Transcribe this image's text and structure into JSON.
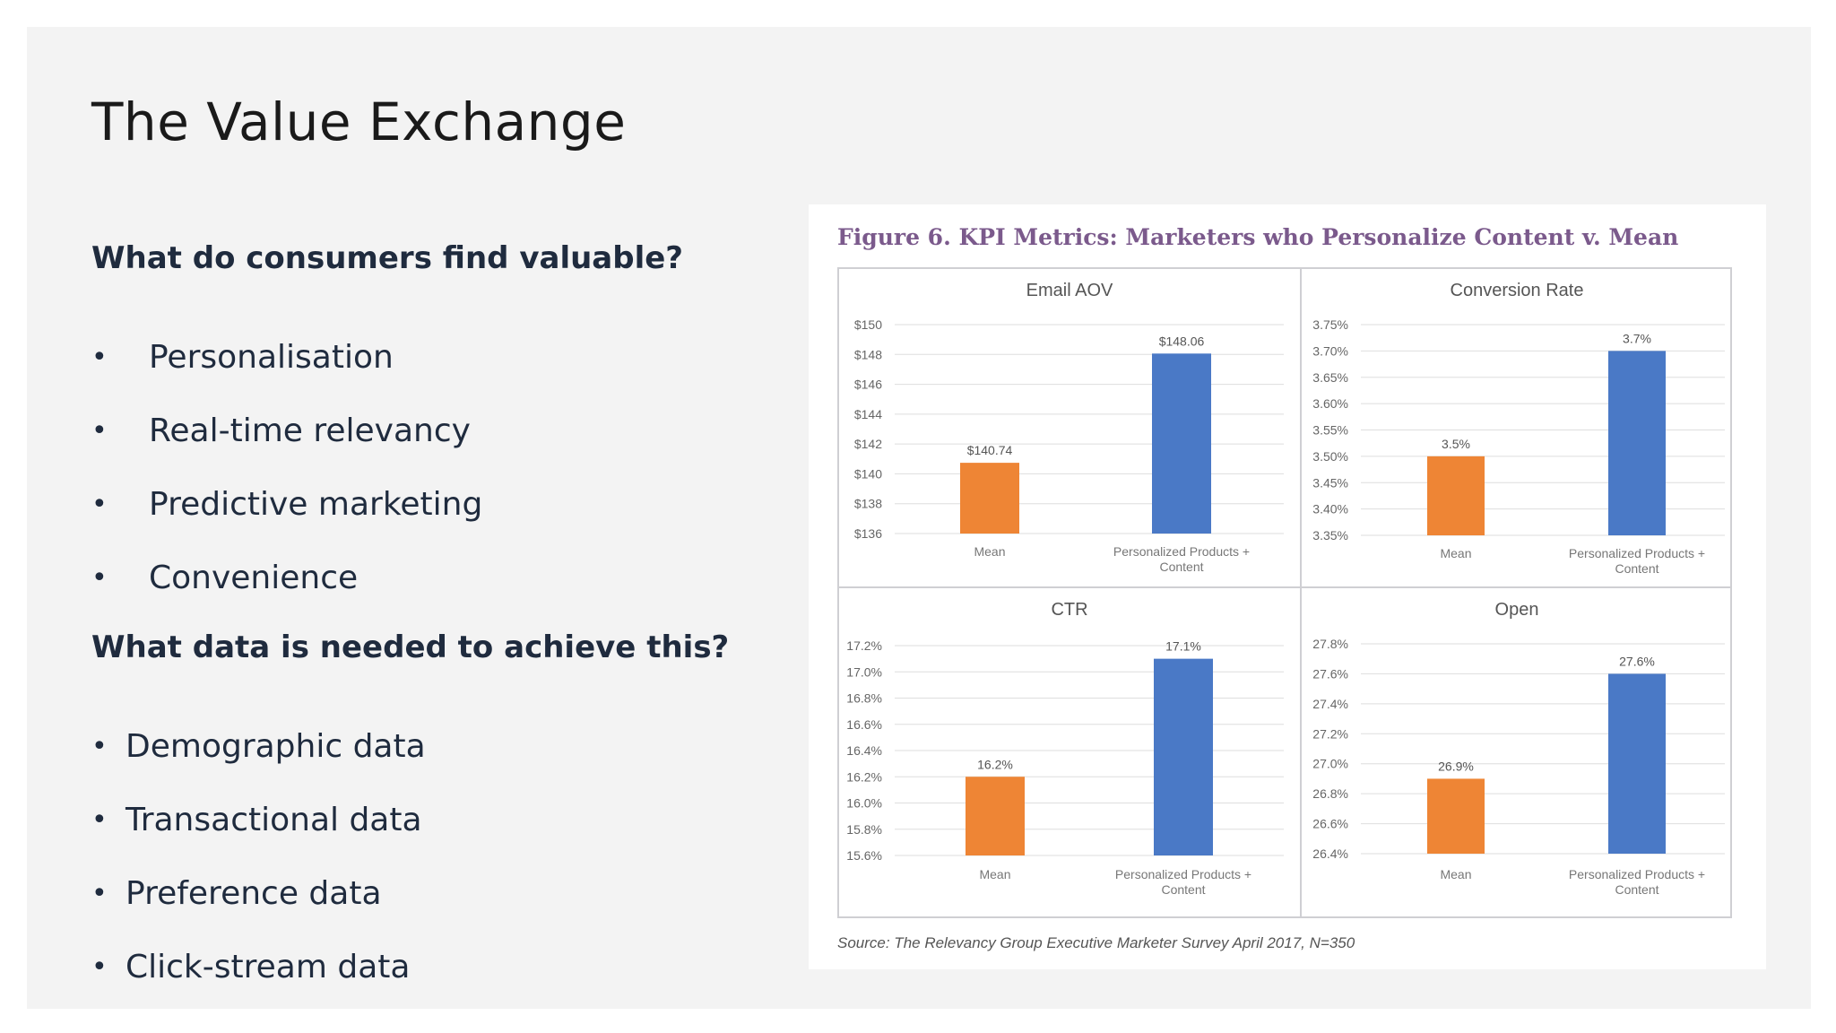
{
  "slide": {
    "title": "The Value Exchange",
    "section1": {
      "heading": "What do consumers find valuable?",
      "bullet": "•",
      "items": [
        "Personalisation",
        "Real-time relevancy",
        "Predictive marketing",
        "Convenience"
      ]
    },
    "section2": {
      "heading": "What data is needed to achieve this?",
      "bullet": "•",
      "items": [
        "Demographic data",
        "Transactional data",
        "Preference data",
        "Click-stream data"
      ]
    }
  },
  "figure": {
    "title": "Figure 6. KPI Metrics: Marketers who Personalize Content v. Mean",
    "source": "Source: The Relevancy Group Executive Marketer Survey April 2017, N=350"
  },
  "colors": {
    "mean": "#ee8535",
    "personalized": "#4a79c6",
    "grid": "#dedede",
    "text": "#555555"
  },
  "chart_data": [
    {
      "type": "bar",
      "title": "Email AOV",
      "categories": [
        "Mean",
        "Personalized Products + Content"
      ],
      "values": [
        140.74,
        148.06
      ],
      "value_labels": [
        "$140.74",
        "$148.06"
      ],
      "ylim": [
        136,
        150
      ],
      "yticks": [
        136,
        138,
        140,
        142,
        144,
        146,
        148,
        150
      ],
      "ytick_labels": [
        "$136",
        "$138",
        "$140",
        "$142",
        "$144",
        "$146",
        "$148",
        "$150"
      ],
      "grid": true
    },
    {
      "type": "bar",
      "title": "Conversion Rate",
      "categories": [
        "Mean",
        "Personalized Products + Content"
      ],
      "values": [
        3.5,
        3.7
      ],
      "value_labels": [
        "3.5%",
        "3.7%"
      ],
      "ylim": [
        3.35,
        3.75
      ],
      "yticks": [
        3.35,
        3.4,
        3.45,
        3.5,
        3.55,
        3.6,
        3.65,
        3.7,
        3.75
      ],
      "ytick_labels": [
        "3.35%",
        "3.40%",
        "3.45%",
        "3.50%",
        "3.55%",
        "3.60%",
        "3.65%",
        "3.70%",
        "3.75%"
      ],
      "grid": true
    },
    {
      "type": "bar",
      "title": "CTR",
      "categories": [
        "Mean",
        "Personalized Products + Content"
      ],
      "values": [
        16.2,
        17.1
      ],
      "value_labels": [
        "16.2%",
        "17.1%"
      ],
      "ylim": [
        15.6,
        17.2
      ],
      "yticks": [
        15.6,
        15.8,
        16.0,
        16.2,
        16.4,
        16.6,
        16.8,
        17.0,
        17.2
      ],
      "ytick_labels": [
        "15.6%",
        "15.8%",
        "16.0%",
        "16.2%",
        "16.4%",
        "16.6%",
        "16.8%",
        "17.0%",
        "17.2%"
      ],
      "grid": true
    },
    {
      "type": "bar",
      "title": "Open",
      "categories": [
        "Mean",
        "Personalized Products + Content"
      ],
      "values": [
        26.9,
        27.6
      ],
      "value_labels": [
        "26.9%",
        "27.6%"
      ],
      "ylim": [
        26.4,
        27.8
      ],
      "yticks": [
        26.4,
        26.6,
        26.8,
        27.0,
        27.2,
        27.4,
        27.6,
        27.8
      ],
      "ytick_labels": [
        "26.4%",
        "26.6%",
        "26.8%",
        "27.0%",
        "27.2%",
        "27.4%",
        "27.6%",
        "27.8%"
      ],
      "grid": true
    }
  ]
}
